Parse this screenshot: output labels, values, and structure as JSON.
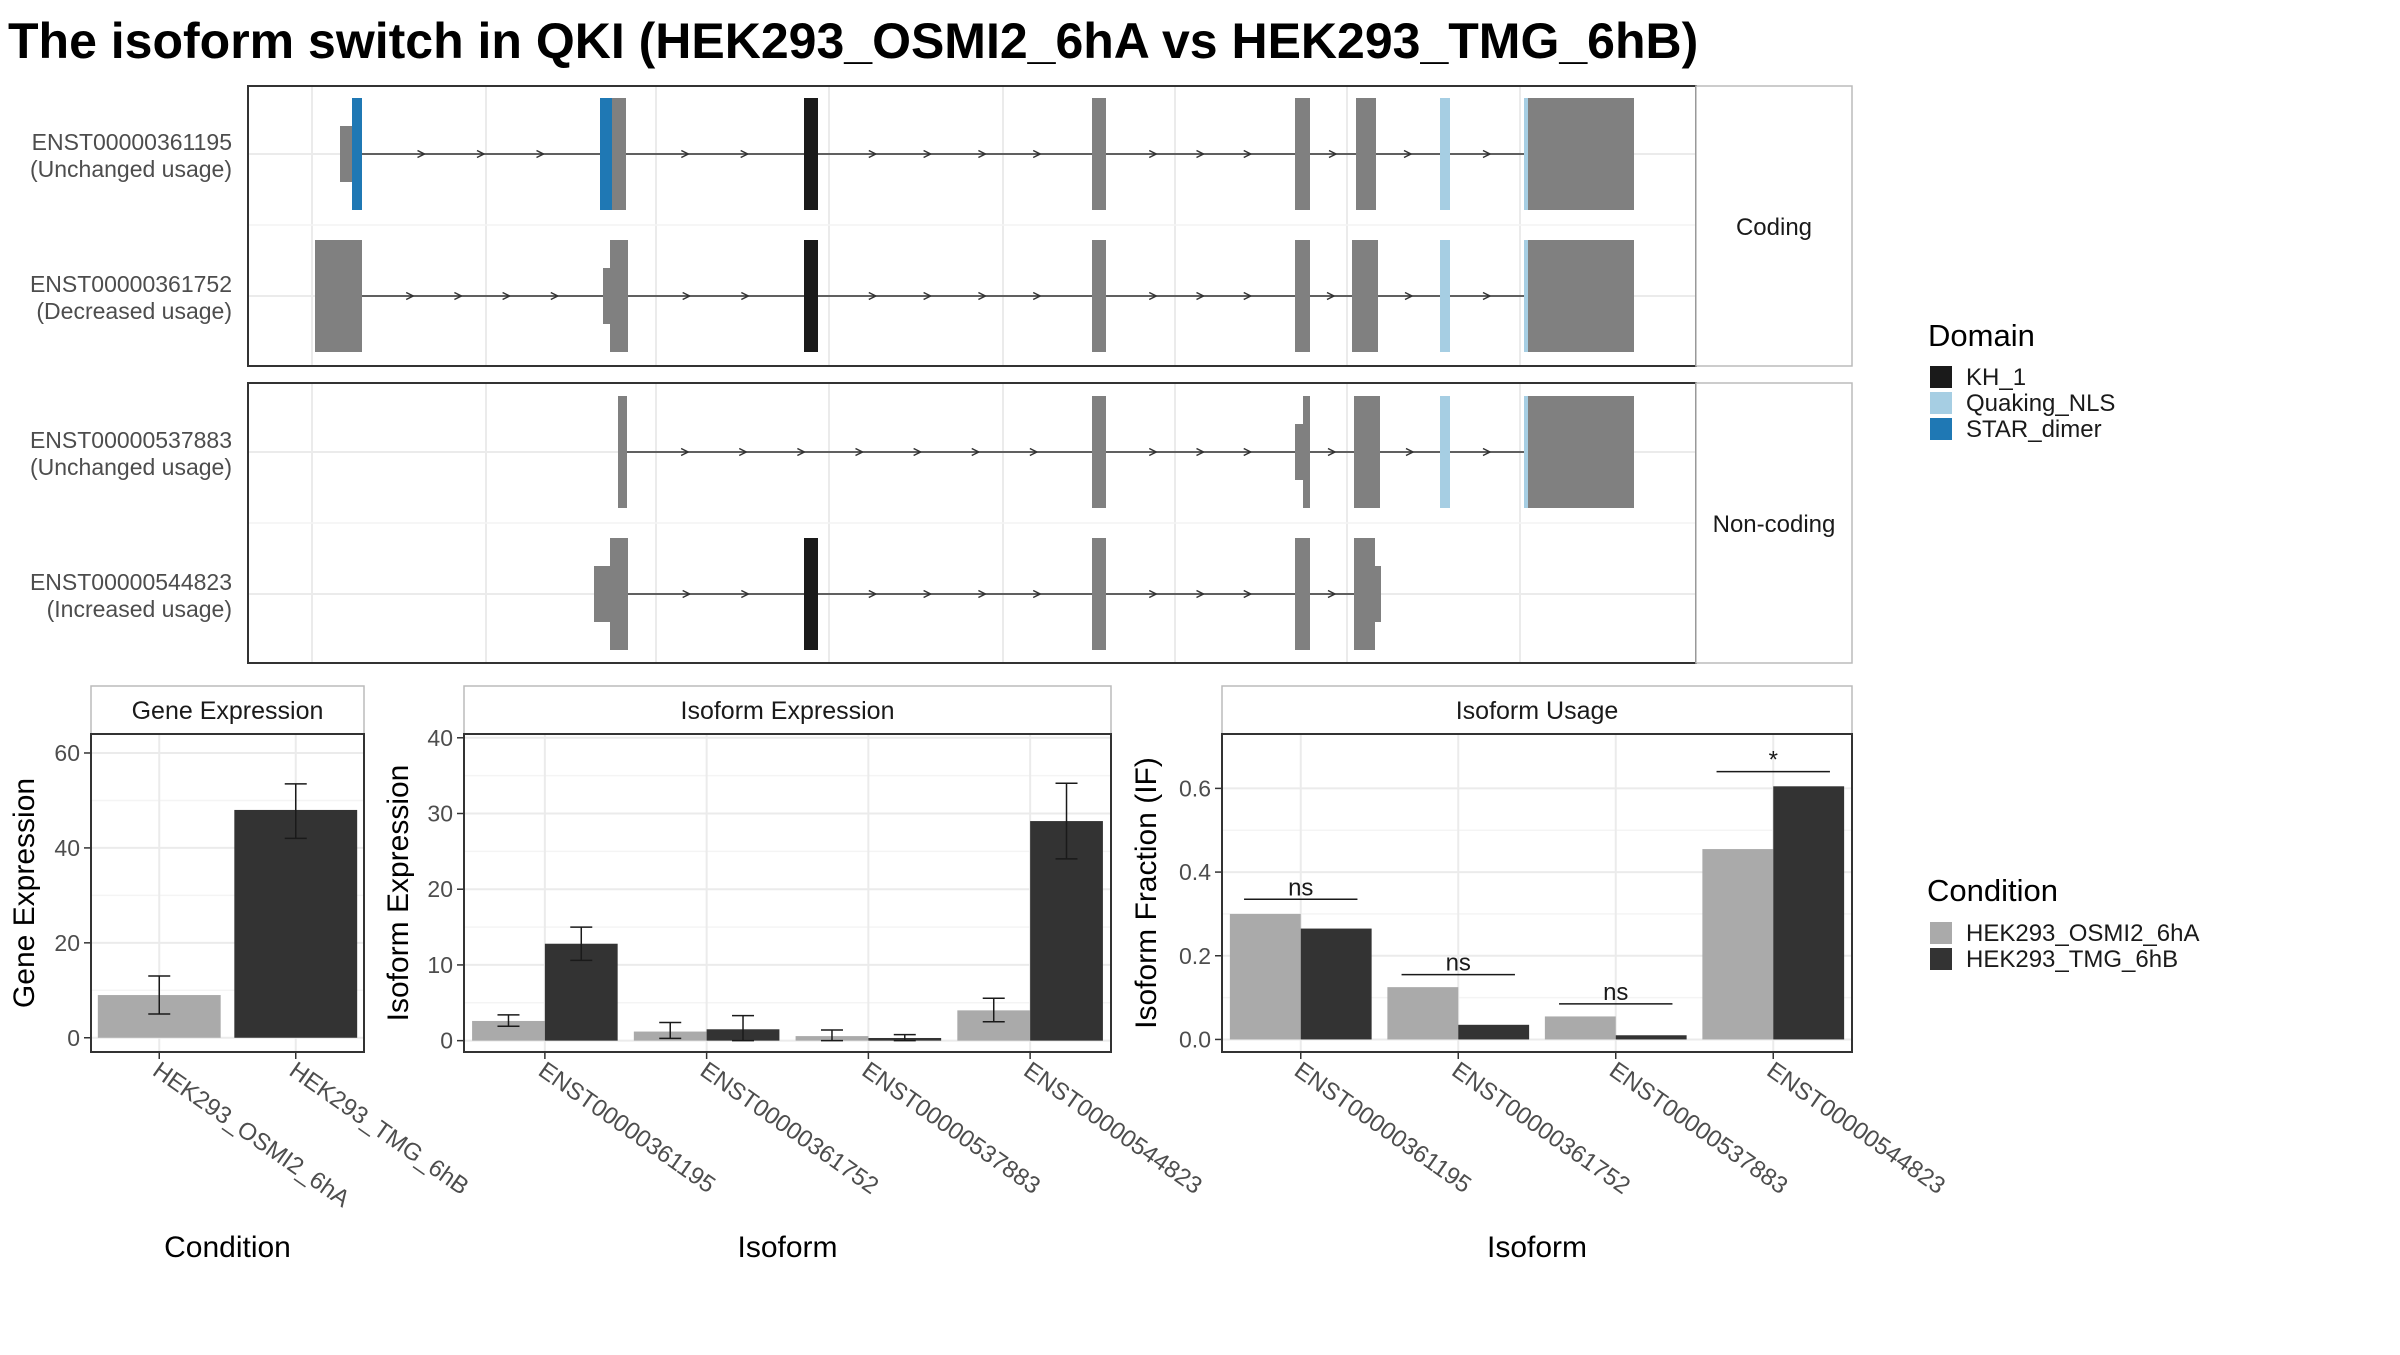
{
  "title": "The isoform switch in QKI (HEK293_OSMI2_6hA vs HEK293_TMG_6hB)",
  "structure": {
    "facets": [
      "Coding",
      "Non-coding"
    ],
    "transcripts": [
      {
        "id": "ENST00000361195",
        "usage": "(Unchanged usage)",
        "facet": 0,
        "exons": [
          [
            340,
            352,
            "thin"
          ],
          [
            352,
            362,
            "STAR_dimer"
          ],
          [
            600,
            612,
            "STAR_dimer"
          ],
          [
            612,
            626,
            "exon"
          ],
          [
            804,
            818,
            "KH_1"
          ],
          [
            1092,
            1106,
            "exon"
          ],
          [
            1295,
            1310,
            "exon"
          ],
          [
            1356,
            1376,
            "exon"
          ],
          [
            1440,
            1450,
            "Quaking_NLS"
          ],
          [
            1524,
            1528,
            "Quaking_NLS"
          ],
          [
            1528,
            1634,
            "exon"
          ]
        ]
      },
      {
        "id": "ENST00000361752",
        "usage": "(Decreased usage)",
        "facet": 0,
        "exons": [
          [
            315,
            362,
            "exon"
          ],
          [
            603,
            610,
            "thin"
          ],
          [
            610,
            628,
            "exon"
          ],
          [
            804,
            818,
            "KH_1"
          ],
          [
            1092,
            1106,
            "exon"
          ],
          [
            1295,
            1310,
            "exon"
          ],
          [
            1352,
            1378,
            "exon"
          ],
          [
            1440,
            1450,
            "Quaking_NLS"
          ],
          [
            1524,
            1528,
            "Quaking_NLS"
          ],
          [
            1528,
            1634,
            "exon"
          ]
        ]
      },
      {
        "id": "ENST00000537883",
        "usage": "(Unchanged usage)",
        "facet": 1,
        "exons": [
          [
            618,
            627,
            "exon"
          ],
          [
            1092,
            1106,
            "exon"
          ],
          [
            1295,
            1303,
            "thin"
          ],
          [
            1303,
            1310,
            "exon"
          ],
          [
            1354,
            1380,
            "exon"
          ],
          [
            1440,
            1450,
            "Quaking_NLS"
          ],
          [
            1524,
            1528,
            "Quaking_NLS"
          ],
          [
            1528,
            1634,
            "exon"
          ]
        ]
      },
      {
        "id": "ENST00000544823",
        "usage": "(Increased usage)",
        "facet": 1,
        "exons": [
          [
            594,
            610,
            "thin"
          ],
          [
            610,
            628,
            "exon"
          ],
          [
            804,
            818,
            "KH_1"
          ],
          [
            1092,
            1106,
            "exon"
          ],
          [
            1295,
            1310,
            "exon"
          ],
          [
            1354,
            1375,
            "exon"
          ],
          [
            1375,
            1381,
            "thin"
          ]
        ]
      }
    ]
  },
  "domain_legend": {
    "title": "Domain",
    "items": [
      {
        "label": "KH_1",
        "color": "#1a1a1a"
      },
      {
        "label": "Quaking_NLS",
        "color": "#a6cee3"
      },
      {
        "label": "STAR_dimer",
        "color": "#1f78b4"
      }
    ]
  },
  "condition_legend": {
    "title": "Condition",
    "items": [
      {
        "label": "HEK293_OSMI2_6hA",
        "color": "#aaaaaa"
      },
      {
        "label": "HEK293_TMG_6hB",
        "color": "#333333"
      }
    ]
  },
  "chart_data": [
    {
      "type": "bar",
      "title": "Gene Expression",
      "xlabel": "Condition",
      "ylabel": "Gene Expression",
      "categories": [
        "HEK293_OSMI2_6hA",
        "HEK293_TMG_6hB"
      ],
      "values": [
        9,
        48
      ],
      "error_low": [
        5,
        42
      ],
      "error_high": [
        13,
        53.5
      ],
      "ylim": [
        -3,
        64
      ],
      "yticks": [
        0,
        20,
        40,
        60
      ],
      "grid": true
    },
    {
      "type": "bar",
      "title": "Isoform Expression",
      "xlabel": "Isoform",
      "ylabel": "Isoform Expression",
      "categories": [
        "ENST00000361195",
        "ENST00000361752",
        "ENST00000537883",
        "ENST00000544823"
      ],
      "series": [
        {
          "name": "HEK293_OSMI2_6hA",
          "values": [
            2.6,
            1.2,
            0.6,
            4.0
          ],
          "error_low": [
            1.9,
            0.3,
            0.0,
            2.5
          ],
          "error_high": [
            3.4,
            2.4,
            1.4,
            5.6
          ]
        },
        {
          "name": "HEK293_TMG_6hB",
          "values": [
            12.8,
            1.5,
            0.35,
            29.0
          ],
          "error_low": [
            10.6,
            0.0,
            0.0,
            24.0
          ],
          "error_high": [
            15.0,
            3.3,
            0.8,
            34.0
          ]
        }
      ],
      "ylim": [
        -1.5,
        40.5
      ],
      "yticks": [
        0,
        10,
        20,
        30,
        40
      ],
      "grid": true
    },
    {
      "type": "bar",
      "title": "Isoform Usage",
      "xlabel": "Isoform",
      "ylabel": "Isoform Fraction (IF)",
      "categories": [
        "ENST00000361195",
        "ENST00000361752",
        "ENST00000537883",
        "ENST00000544823"
      ],
      "series": [
        {
          "name": "HEK293_OSMI2_6hA",
          "values": [
            0.3,
            0.125,
            0.055,
            0.455
          ]
        },
        {
          "name": "HEK293_TMG_6hB",
          "values": [
            0.265,
            0.035,
            0.01,
            0.605
          ]
        }
      ],
      "annotations": [
        {
          "label": "ns",
          "y": 0.335
        },
        {
          "label": "ns",
          "y": 0.155
        },
        {
          "label": "ns",
          "y": 0.085
        },
        {
          "label": "*",
          "y": 0.64
        }
      ],
      "ylim": [
        -0.03,
        0.73
      ],
      "yticks": [
        0.0,
        0.2,
        0.4,
        0.6
      ],
      "yticklabels": [
        "0.0",
        "0.2",
        "0.4",
        "0.6"
      ],
      "grid": true
    }
  ]
}
